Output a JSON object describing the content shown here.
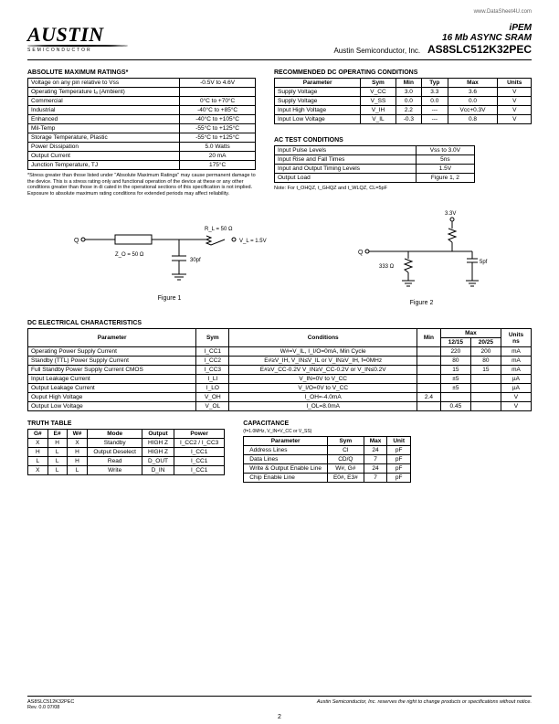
{
  "meta": {
    "url": "www.DataSheet4U.com",
    "logo_text": "AUSTIN",
    "logo_sub": "SEMICONDUCTOR",
    "brand": "iPEM",
    "desc": "16 Mb ASYNC SRAM",
    "company": "Austin Semiconductor, Inc.",
    "part": "AS8SLC512K32PEC",
    "page_num": "2",
    "footer_left_1": "AS8SLC512K32PEC",
    "footer_left_2": "Rev. 0.0 07/08",
    "footer_right": "Austin Semiconductor, Inc. reserves the right to change products or specifications without notice."
  },
  "abs_max": {
    "title": "ABSOLUTE MAXIMUM RATINGS*",
    "rows": [
      [
        "Voltage on any pin relative to Vss",
        "-0.5V to 4.6V"
      ],
      [
        "Operating Temperature tₐ (Ambient)",
        ""
      ],
      [
        "Commercial",
        "0°C to +70°C"
      ],
      [
        "Industrial",
        "-40°C to +85°C"
      ],
      [
        "Enhanced",
        "-40°C to +105°C"
      ],
      [
        "Mil-Temp",
        "-55°C to +125°C"
      ],
      [
        "Storage Temperature, Plastic",
        "-55°C to +125°C"
      ],
      [
        "Power Dissipation",
        "5.0 Watts"
      ],
      [
        "Output Current",
        "20 mA"
      ],
      [
        "Junction Temperature, TJ",
        "175°C"
      ]
    ],
    "note": "*Stress greater than those listed under \"Absolute Maximum Ratings\" may cause permanent damage to the device. This is a stress rating only and functional operation of the device at these or any other conditions greater than those in di cated in the operational sections of this specification is not implied. Exposure to absolute maximum rating conditions for extended periods may affect reliability."
  },
  "rec_dc": {
    "title": "RECOMMENDED DC OPERATING CONDITIONS",
    "headers": [
      "Parameter",
      "Sym",
      "Min",
      "Typ",
      "Max",
      "Units"
    ],
    "rows": [
      [
        "Supply Voltage",
        "V_CC",
        "3.0",
        "3.3",
        "3.6",
        "V"
      ],
      [
        "Supply Voltage",
        "V_SS",
        "0.0",
        "0.0",
        "0.0",
        "V"
      ],
      [
        "Input High Voltage",
        "V_IH",
        "2.2",
        "---",
        "Vcc+0.3V",
        "V"
      ],
      [
        "Input Low Voltage",
        "V_IL",
        "-0.3",
        "---",
        "0.8",
        "V"
      ]
    ]
  },
  "ac_test": {
    "title": "AC TEST CONDITIONS",
    "rows": [
      [
        "Input Pulse Levels",
        "Vss to 3.0V"
      ],
      [
        "Input Rise and Fall Times",
        "5ns"
      ],
      [
        "Input and Output Timing Levels",
        "1.5V"
      ],
      [
        "Output Load",
        "Figure 1, 2"
      ]
    ],
    "note": "Note: For t_OHQZ, t_GHQZ and t_WLQZ, CL=5pF"
  },
  "figure1": {
    "label": "Figure 1",
    "z_o": "Z_O = 50 Ω",
    "r_l": "R_L = 50 Ω",
    "v_l": "V_L = 1.5V",
    "cap": "30pf",
    "q": "Q"
  },
  "figure2": {
    "label": "Figure 2",
    "vcc": "3.3V",
    "r1": "333 Ω",
    "cap": "5pf",
    "q": "Q"
  },
  "dc_elec": {
    "title": "DC ELECTRICAL CHARACTERISTICS",
    "headers": [
      "Parameter",
      "Sym",
      "Conditions",
      "Min",
      "Max 12/15",
      "Max 20/25",
      "Units"
    ],
    "rows": [
      [
        "Operating Power Supply Current",
        "I_CC1",
        "W#=V_IL, I_I/O=0mA, Min Cycle",
        "",
        "220",
        "200",
        "mA"
      ],
      [
        "Standby (TTL) Power Supply Current",
        "I_CC2",
        "E#≥V_IH, V_IN≤V_IL or V_IN≥V_IH, f=0MHz",
        "",
        "80",
        "80",
        "mA"
      ],
      [
        "Full Standby Power Supply Current CMOS",
        "I_CC3",
        "E#≥V_CC-0.2V\nV_IN≥V_CC-0.2V or V_IN≤0.2V",
        "",
        "15",
        "15",
        "mA"
      ],
      [
        "Input Leakage Current",
        "I_LI",
        "V_IN=0V to V_CC",
        "",
        "±5",
        "",
        "µA"
      ],
      [
        "Output Leakage Current",
        "I_LO",
        "V_I/O=0V to V_CC",
        "",
        "±5",
        "",
        "µA"
      ],
      [
        "Ouput High Voltage",
        "V_OH",
        "I_OH=-4.0mA",
        "2.4",
        "",
        "",
        "V"
      ],
      [
        "Output Low Voltage",
        "V_OL",
        "I_OL=8.0mA",
        "",
        "0.45",
        "",
        "V"
      ]
    ]
  },
  "truth": {
    "title": "TRUTH TABLE",
    "headers": [
      "G#",
      "E#",
      "W#",
      "Mode",
      "Output",
      "Power"
    ],
    "rows": [
      [
        "X",
        "H",
        "X",
        "Standby",
        "HIGH Z",
        "I_CC2 / I_CC3"
      ],
      [
        "H",
        "L",
        "H",
        "Output Deselect",
        "HIGH Z",
        "I_CC1"
      ],
      [
        "L",
        "L",
        "H",
        "Read",
        "D_OUT",
        "I_CC1"
      ],
      [
        "X",
        "L",
        "L",
        "Write",
        "D_IN",
        "I_CC1"
      ]
    ]
  },
  "cap": {
    "title": "CAPACITANCE",
    "cond": "(f=1.0MHz, V_IN=V_CC or V_SS)",
    "headers": [
      "Parameter",
      "Sym",
      "Max",
      "Unit"
    ],
    "rows": [
      [
        "Address Lines",
        "CI",
        "24",
        "pF"
      ],
      [
        "Data Lines",
        "CD/Q",
        "7",
        "pF"
      ],
      [
        "Write & Output Enable Line",
        "W#, G#",
        "24",
        "pF"
      ],
      [
        "Chip Enable Line",
        "E0#, E3#",
        "7",
        "pF"
      ]
    ]
  },
  "colors": {
    "border": "#000000",
    "text": "#000000",
    "bg": "#ffffff"
  }
}
